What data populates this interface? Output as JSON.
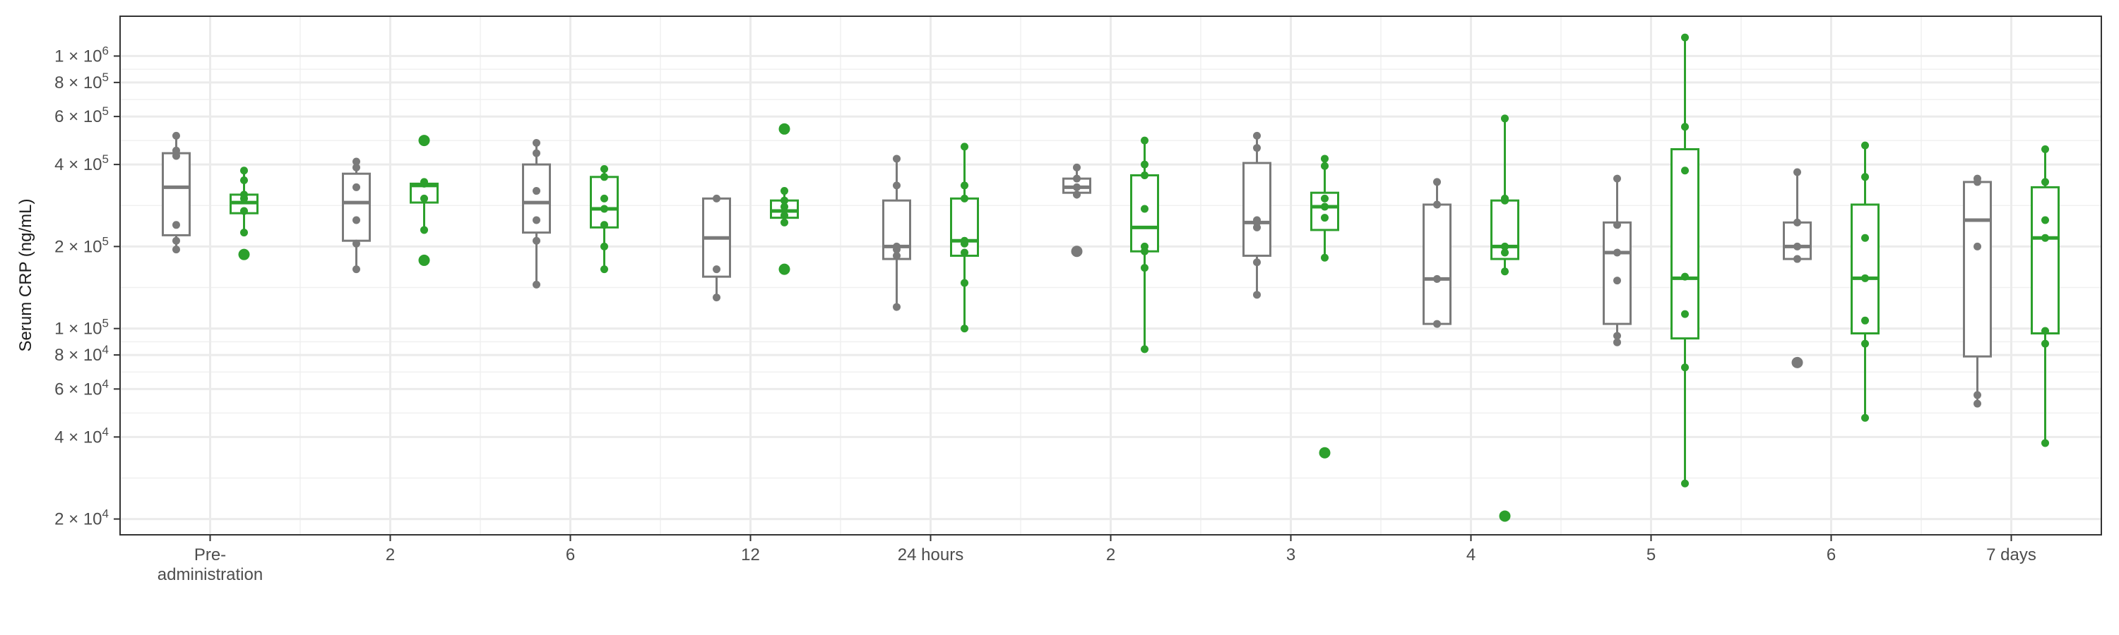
{
  "chart_data": {
    "type": "boxplot",
    "title": "",
    "ylabel": "Serum CRP (ng/mL)",
    "xlabel": "",
    "y_scale": "log10",
    "ylim": [
      17500,
      1400000
    ],
    "grid": true,
    "legend": "none",
    "y_ticks": [
      {
        "value": 20000,
        "mant": "2",
        "exp": "4"
      },
      {
        "value": 40000,
        "mant": "4",
        "exp": "4"
      },
      {
        "value": 60000,
        "mant": "6",
        "exp": "4"
      },
      {
        "value": 80000,
        "mant": "8",
        "exp": "4"
      },
      {
        "value": 100000,
        "mant": "1",
        "exp": "5"
      },
      {
        "value": 200000,
        "mant": "2",
        "exp": "5"
      },
      {
        "value": 400000,
        "mant": "4",
        "exp": "5"
      },
      {
        "value": 600000,
        "mant": "6",
        "exp": "5"
      },
      {
        "value": 800000,
        "mant": "8",
        "exp": "5"
      },
      {
        "value": 1000000,
        "mant": "1",
        "exp": "6"
      }
    ],
    "categories": [
      [
        "Pre-",
        "administration"
      ],
      [
        "2"
      ],
      [
        "6"
      ],
      [
        "12"
      ],
      [
        "24 hours"
      ],
      [
        "2"
      ],
      [
        "3"
      ],
      [
        "4"
      ],
      [
        "5"
      ],
      [
        "6"
      ],
      [
        "7 days"
      ]
    ],
    "series": [
      {
        "color": "#7a7a7a",
        "groups": [
          {
            "q1": 220000,
            "median": 330000,
            "q3": 440000,
            "whisker_low": 195000,
            "whisker_high": 510000,
            "outliers": [],
            "points": [
              195000,
              210000,
              240000,
              430000,
              450000,
              510000
            ]
          },
          {
            "q1": 210000,
            "median": 290000,
            "q3": 370000,
            "whisker_low": 165000,
            "whisker_high": 410000,
            "outliers": [],
            "points": [
              165000,
              205000,
              250000,
              330000,
              390000,
              410000
            ]
          },
          {
            "q1": 225000,
            "median": 290000,
            "q3": 400000,
            "whisker_low": 145000,
            "whisker_high": 480000,
            "outliers": [],
            "points": [
              145000,
              210000,
              250000,
              320000,
              440000,
              480000
            ]
          },
          {
            "q1": 155000,
            "median": 215000,
            "q3": 300000,
            "whisker_low": 130000,
            "whisker_high": 300000,
            "outliers": [],
            "points": [
              130000,
              165000,
              300000
            ]
          },
          {
            "q1": 180000,
            "median": 200000,
            "q3": 295000,
            "whisker_low": 120000,
            "whisker_high": 420000,
            "outliers": [],
            "points": [
              120000,
              185000,
              195000,
              200000,
              335000,
              420000
            ]
          },
          {
            "q1": 315000,
            "median": 330000,
            "q3": 355000,
            "whisker_low": 300000,
            "whisker_high": 390000,
            "outliers": [
              192000
            ],
            "points": [
              310000,
              330000,
              355000,
              390000
            ]
          },
          {
            "q1": 185000,
            "median": 245000,
            "q3": 405000,
            "whisker_low": 133000,
            "whisker_high": 510000,
            "outliers": [],
            "points": [
              133000,
              175000,
              235000,
              245000,
              250000,
              460000,
              510000
            ]
          },
          {
            "q1": 104000,
            "median": 152000,
            "q3": 285000,
            "whisker_low": 104000,
            "whisker_high": 345000,
            "outliers": [],
            "points": [
              104000,
              152000,
              285000,
              345000
            ]
          },
          {
            "q1": 104000,
            "median": 190000,
            "q3": 245000,
            "whisker_low": 89000,
            "whisker_high": 355000,
            "outliers": [],
            "points": [
              89000,
              94000,
              150000,
              190000,
              240000,
              355000
            ]
          },
          {
            "q1": 180000,
            "median": 200000,
            "q3": 245000,
            "whisker_low": 180000,
            "whisker_high": 375000,
            "outliers": [
              75000
            ],
            "points": [
              180000,
              200000,
              245000,
              375000
            ]
          },
          {
            "q1": 79000,
            "median": 250000,
            "q3": 345000,
            "whisker_low": 53000,
            "whisker_high": 355000,
            "outliers": [],
            "points": [
              53000,
              57000,
              200000,
              345000,
              355000
            ]
          }
        ]
      },
      {
        "color": "#2ca02c",
        "groups": [
          {
            "q1": 265000,
            "median": 290000,
            "q3": 310000,
            "whisker_low": 225000,
            "whisker_high": 380000,
            "outliers": [
              187000
            ],
            "points": [
              225000,
              270000,
              300000,
              310000,
              350000,
              380000
            ]
          },
          {
            "q1": 290000,
            "median": 335000,
            "q3": 340000,
            "whisker_low": 230000,
            "whisker_high": 350000,
            "outliers": [
              490000,
              178000
            ],
            "points": [
              230000,
              300000,
              340000,
              345000
            ]
          },
          {
            "q1": 235000,
            "median": 275000,
            "q3": 360000,
            "whisker_low": 165000,
            "whisker_high": 385000,
            "outliers": [],
            "points": [
              165000,
              200000,
              240000,
              275000,
              300000,
              360000,
              385000
            ]
          },
          {
            "q1": 255000,
            "median": 270000,
            "q3": 295000,
            "whisker_low": 245000,
            "whisker_high": 320000,
            "outliers": [
              540000,
              165000
            ],
            "points": [
              245000,
              260000,
              280000,
              295000,
              320000
            ]
          },
          {
            "q1": 185000,
            "median": 210000,
            "q3": 300000,
            "whisker_low": 100000,
            "whisker_high": 465000,
            "outliers": [],
            "points": [
              100000,
              147000,
              190000,
              205000,
              210000,
              300000,
              335000,
              465000
            ]
          },
          {
            "q1": 192000,
            "median": 235000,
            "q3": 365000,
            "whisker_low": 84000,
            "whisker_high": 490000,
            "outliers": [],
            "points": [
              84000,
              167000,
              192000,
              200000,
              275000,
              365000,
              400000,
              490000
            ]
          },
          {
            "q1": 230000,
            "median": 280000,
            "q3": 315000,
            "whisker_low": 182000,
            "whisker_high": 420000,
            "outliers": [
              35000
            ],
            "points": [
              182000,
              255000,
              280000,
              300000,
              395000,
              420000
            ]
          },
          {
            "q1": 180000,
            "median": 200000,
            "q3": 295000,
            "whisker_low": 162000,
            "whisker_high": 590000,
            "outliers": [
              20500
            ],
            "points": [
              162000,
              190000,
              200000,
              295000,
              300000,
              590000
            ]
          },
          {
            "q1": 92000,
            "median": 153000,
            "q3": 455000,
            "whisker_low": 27000,
            "whisker_high": 1170000,
            "outliers": [],
            "points": [
              27000,
              72000,
              113000,
              155000,
              380000,
              550000,
              1170000
            ]
          },
          {
            "q1": 96000,
            "median": 153000,
            "q3": 285000,
            "whisker_low": 47000,
            "whisker_high": 470000,
            "outliers": [],
            "points": [
              47000,
              88000,
              107000,
              153000,
              215000,
              360000,
              470000
            ]
          },
          {
            "q1": 96000,
            "median": 215000,
            "q3": 330000,
            "whisker_low": 38000,
            "whisker_high": 455000,
            "outliers": [],
            "points": [
              38000,
              88000,
              98000,
              215000,
              250000,
              345000,
              455000
            ]
          }
        ]
      }
    ]
  }
}
